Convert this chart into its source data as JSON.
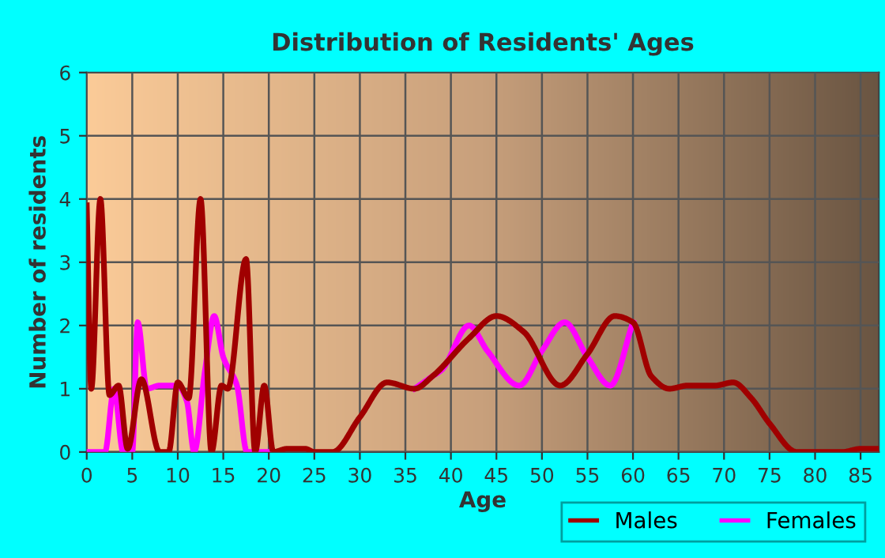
{
  "chart_data": {
    "type": "line",
    "title": "Distribution of Residents' Ages",
    "xlabel": "Age",
    "ylabel": "Number of residents",
    "xlim": [
      0,
      87
    ],
    "ylim": [
      0,
      6
    ],
    "xticks": [
      0,
      5,
      10,
      15,
      20,
      25,
      30,
      35,
      40,
      45,
      50,
      55,
      60,
      65,
      70,
      75,
      80,
      85
    ],
    "yticks": [
      0,
      1,
      2,
      3,
      4,
      5,
      6
    ],
    "grid": true,
    "legend": "bottom right",
    "marker": "none",
    "line_style": "solid",
    "series": [
      {
        "name": "Females",
        "color": "#ff00ff",
        "x": [
          0.2,
          1,
          2,
          3,
          4,
          5,
          5.6,
          6.6,
          8,
          10,
          11,
          11.8,
          13,
          14,
          15,
          16.5,
          17.6,
          20,
          25,
          36,
          38,
          39,
          42,
          44,
          47.5,
          50,
          52.5,
          55,
          57.5,
          60
        ],
        "values": [
          0,
          0,
          0,
          1,
          0,
          0,
          2.05,
          1,
          1.05,
          1.05,
          0.8,
          0,
          1.3,
          2.15,
          1.5,
          1.05,
          0,
          0,
          null,
          1,
          1.2,
          1.3,
          2,
          1.6,
          1.05,
          1.6,
          2.05,
          1.5,
          1.05,
          2.05
        ]
      },
      {
        "name": "Males",
        "color": "#a00000",
        "x": [
          0,
          0.5,
          1.5,
          2.5,
          3.5,
          4.5,
          6,
          8,
          9,
          10,
          11.2,
          12.5,
          13.7,
          14.8,
          15.5,
          17.5,
          18.5,
          19.5,
          20.5,
          22,
          24,
          25,
          27,
          30,
          33,
          36,
          38,
          42,
          45,
          48,
          52,
          55,
          58,
          60,
          62,
          64,
          66,
          69,
          71,
          73,
          75,
          78,
          83,
          85,
          87
        ],
        "values": [
          3.9,
          1,
          4,
          0.9,
          1.05,
          0.05,
          1.15,
          0,
          0,
          1.1,
          0.85,
          4,
          0,
          1.05,
          1,
          3.05,
          0,
          1.05,
          0,
          0.05,
          0.05,
          0,
          0,
          0.55,
          1.1,
          1,
          1.2,
          1.8,
          2.15,
          1.9,
          1.05,
          1.55,
          2.15,
          2.05,
          1.2,
          1,
          1.05,
          1.05,
          1.1,
          0.85,
          0.45,
          0,
          0,
          0.05,
          0.05
        ]
      }
    ]
  }
}
